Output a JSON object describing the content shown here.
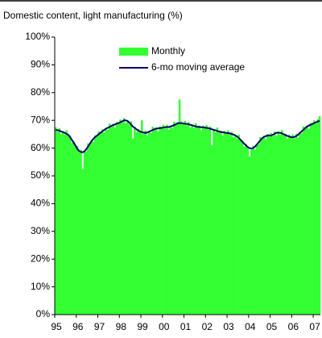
{
  "chart_data": {
    "type": "bar+line",
    "title": "Domestic content, light manufacturing (%)",
    "categories": [
      "95",
      null,
      null,
      null,
      null,
      null,
      null,
      null,
      null,
      null,
      null,
      null,
      "96",
      null,
      null,
      null,
      null,
      null,
      null,
      null,
      null,
      null,
      null,
      null,
      "97",
      null,
      null,
      null,
      null,
      null,
      null,
      null,
      null,
      null,
      null,
      null,
      "98",
      null,
      null,
      null,
      null,
      null,
      null,
      null,
      null,
      null,
      null,
      null,
      "99",
      null,
      null,
      null,
      null,
      null,
      null,
      null,
      null,
      null,
      null,
      null,
      "00",
      null,
      null,
      null,
      null,
      null,
      null,
      null,
      null,
      null,
      null,
      null,
      "01",
      null,
      null,
      null,
      null,
      null,
      null,
      null,
      null,
      null,
      null,
      null,
      "02",
      null,
      null,
      null,
      null,
      null,
      null,
      null,
      null,
      null,
      null,
      null,
      "03",
      null,
      null,
      null,
      null,
      null,
      null,
      null,
      null,
      null,
      null,
      null,
      "04",
      null,
      null,
      null,
      null,
      null,
      null,
      null,
      null,
      null,
      null,
      null,
      "05",
      null,
      null,
      null,
      null,
      null,
      null,
      null,
      null,
      null,
      null,
      null,
      "06",
      null,
      null,
      null,
      null,
      null,
      null,
      null,
      null,
      null,
      null,
      null,
      "07",
      null,
      null,
      null
    ],
    "series": [
      {
        "name": "Monthly",
        "type": "bar",
        "color": "#33ff33",
        "values": [
          67.5,
          66,
          67.1,
          65,
          66.1,
          64.8,
          66.4,
          64.5,
          64.5,
          61.9,
          62.6,
          60.8,
          60.8,
          58.5,
          59.4,
          52.5,
          59.1,
          58.8,
          61.7,
          61.2,
          63,
          62.2,
          64.6,
          64.3,
          66,
          65,
          66.8,
          65.5,
          67.3,
          66.6,
          68.8,
          67.7,
          68.8,
          67.4,
          69.4,
          68.8,
          70.3,
          69.1,
          70.8,
          69,
          70.1,
          68.5,
          69.7,
          63.5,
          67.8,
          65.7,
          66.9,
          65.8,
          70,
          65.1,
          66.3,
          64.6,
          66.2,
          65.5,
          67.7,
          66.5,
          67.5,
          66,
          67.8,
          67.1,
          68.4,
          67,
          68.4,
          66.6,
          68.1,
          67.3,
          69.5,
          68.3,
          69.4,
          77.5,
          69.6,
          68.7,
          69.8,
          68.2,
          69.4,
          67.4,
          68.5,
          67.3,
          69,
          67.4,
          68.1,
          66.4,
          68.1,
          67.2,
          68.3,
          66.7,
          67.8,
          61,
          66.9,
          65.7,
          67.4,
          65.7,
          66.3,
          64.6,
          66.2,
          65.3,
          66.4,
          64.8,
          65.9,
          63.9,
          64.9,
          63.5,
          64.9,
          62.7,
          62.8,
          60.5,
          61.6,
          60.2,
          57,
          59.3,
          60.8,
          59.5,
          61.5,
          61.3,
          64,
          63.2,
          64.5,
          63.2,
          65.1,
          64.4,
          65.5,
          64.3,
          66,
          64.5,
          65.9,
          64.8,
          66.5,
          64.7,
          65.2,
          63.3,
          64.8,
          63.8,
          64.9,
          63.5,
          65.1,
          63.8,
          65.7,
          65.3,
          67.8,
          66.9,
          68.2,
          67,
          69,
          68.5,
          70,
          68.8,
          70.4,
          71.5
        ]
      },
      {
        "name": "6-mo moving average",
        "type": "line",
        "color": "#000066",
        "values": [
          66.5,
          66.5,
          66.3,
          66,
          65.8,
          65.5,
          65.2,
          64.8,
          64,
          63,
          62,
          61,
          59.8,
          59,
          58.6,
          58.5,
          58.8,
          59.5,
          60.5,
          61.5,
          62.5,
          63.3,
          64,
          64.5,
          65,
          65.5,
          66,
          66.5,
          67,
          67.3,
          67.6,
          68,
          68.3,
          68.5,
          68.8,
          69,
          69.3,
          69.6,
          70,
          70,
          69.8,
          69.2,
          68.5,
          67.8,
          67.3,
          66.8,
          66.3,
          66,
          65.8,
          65.6,
          65.5,
          65.6,
          65.9,
          66.2,
          66.5,
          66.8,
          67,
          67.1,
          67.2,
          67.3,
          67.4,
          67.5,
          67.6,
          67.6,
          67.8,
          68,
          68.3,
          68.6,
          68.9,
          69,
          69,
          68.9,
          68.8,
          68.7,
          68.6,
          68.4,
          68.2,
          68,
          67.8,
          67.7,
          67.6,
          67.5,
          67.5,
          67.4,
          67.3,
          67.2,
          67,
          66.8,
          66.6,
          66.4,
          66.2,
          66,
          65.8,
          65.7,
          65.6,
          65.5,
          65.4,
          65.3,
          65.1,
          64.9,
          64.6,
          64.2,
          63.7,
          63,
          62.3,
          61.6,
          61,
          60.4,
          60,
          59.8,
          60,
          60.5,
          61.2,
          62,
          62.8,
          63.5,
          64,
          64.3,
          64.5,
          64.6,
          64.5,
          64.8,
          65.2,
          65.5,
          65.6,
          65.5,
          65.3,
          65,
          64.7,
          64.4,
          64.2,
          64,
          63.9,
          64,
          64.3,
          64.8,
          65.4,
          66,
          66.6,
          67.2,
          67.7,
          68.1,
          68.4,
          68.7,
          69,
          69.3,
          69.6,
          69.8
        ]
      }
    ],
    "ylim": [
      0,
      100
    ],
    "yticks": [
      {
        "value": 0,
        "label": "0%"
      },
      {
        "value": 10,
        "label": "10%"
      },
      {
        "value": 20,
        "label": "20%"
      },
      {
        "value": 30,
        "label": "30%"
      },
      {
        "value": 40,
        "label": "40%"
      },
      {
        "value": 50,
        "label": "50%"
      },
      {
        "value": 60,
        "label": "60%"
      },
      {
        "value": 70,
        "label": "70%"
      },
      {
        "value": 80,
        "label": "80%"
      },
      {
        "value": 90,
        "label": "90%"
      },
      {
        "value": 100,
        "label": "100%"
      }
    ],
    "grid": false,
    "legend": "top"
  }
}
